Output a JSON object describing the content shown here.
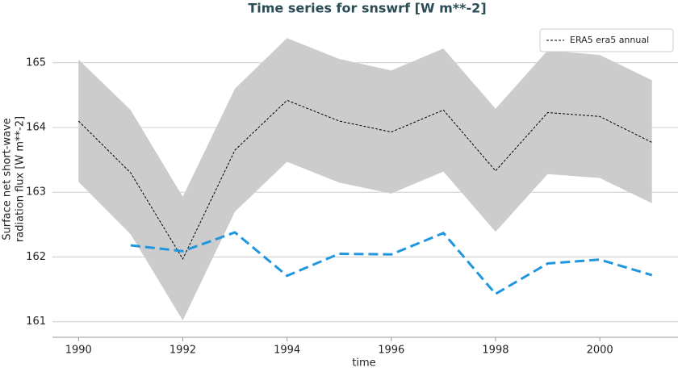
{
  "chart_data": {
    "type": "line",
    "title": "Time series for snswrf [W m**-2]",
    "xlabel": "time",
    "ylabel": [
      "Surface net short-wave",
      "radiation flux [W m**-2]"
    ],
    "x": [
      1990,
      1991,
      1992,
      1993,
      1994,
      1995,
      1996,
      1997,
      1998,
      1999,
      2000,
      2001
    ],
    "xlim": [
      1989.5,
      2001.5
    ],
    "xticks": [
      1990,
      1992,
      1994,
      1996,
      1998,
      2000
    ],
    "ylim": [
      160.76,
      165.62
    ],
    "yticks": [
      161,
      162,
      163,
      164,
      165
    ],
    "grid": true,
    "legend": "upper right",
    "band": {
      "color": "#cccccc",
      "upper": [
        165.05,
        164.27,
        162.93,
        164.6,
        165.38,
        165.06,
        164.88,
        165.22,
        164.29,
        165.19,
        165.12,
        164.73
      ],
      "lower": [
        163.16,
        162.35,
        161.02,
        162.7,
        163.47,
        163.15,
        162.98,
        163.32,
        162.39,
        163.28,
        163.22,
        162.83
      ]
    },
    "series": [
      {
        "name": "ERA5 era5 annual",
        "color": "#000000",
        "dash": "3,2",
        "width": 1,
        "values": [
          164.1,
          163.3,
          161.97,
          163.65,
          164.42,
          164.1,
          163.93,
          164.27,
          163.33,
          164.23,
          164.17,
          163.77
        ]
      },
      {
        "color": "#1f96dd",
        "dash": "12,6",
        "width": 3,
        "values": [
          null,
          162.18,
          162.09,
          162.38,
          161.71,
          162.05,
          162.04,
          162.37,
          161.43,
          161.9,
          161.96,
          161.72
        ]
      }
    ]
  }
}
